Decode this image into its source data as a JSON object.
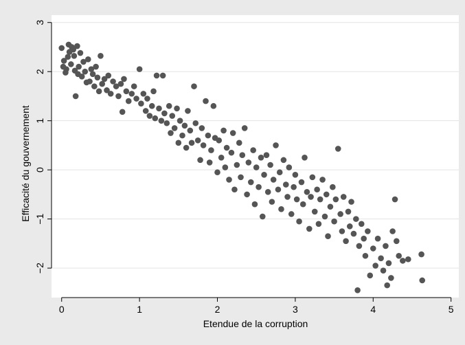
{
  "chart_data": {
    "type": "scatter",
    "title": "",
    "xlabel": "Etendue de la corruption",
    "ylabel": "Efficacité du gouvernement",
    "xlim": [
      -0.13,
      5.1
    ],
    "ylim": [
      -2.6,
      3.15
    ],
    "xticks": [
      0,
      1,
      2,
      3,
      4,
      5
    ],
    "yticks": [
      -2,
      -1,
      0,
      1,
      2,
      3
    ],
    "xtick_labels": [
      "0",
      "1",
      "2",
      "3",
      "4",
      "5"
    ],
    "ytick_labels": [
      "−2",
      "−1",
      "0",
      "1",
      "2",
      "3"
    ],
    "grid": "horizontal",
    "legend": "none",
    "marker_color": "#555555",
    "background_outer": "#eaeaea",
    "background_plot": "#ffffff",
    "grid_color": "#e3e3e3",
    "series": [
      {
        "points": [
          [
            0.0,
            2.48
          ],
          [
            0.02,
            2.1
          ],
          [
            0.03,
            2.22
          ],
          [
            0.05,
            1.98
          ],
          [
            0.06,
            2.05
          ],
          [
            0.08,
            2.3
          ],
          [
            0.09,
            2.55
          ],
          [
            0.1,
            2.4
          ],
          [
            0.12,
            2.15
          ],
          [
            0.13,
            2.5
          ],
          [
            0.15,
            2.45
          ],
          [
            0.16,
            2.32
          ],
          [
            0.17,
            2.02
          ],
          [
            0.18,
            1.5
          ],
          [
            0.2,
            2.52
          ],
          [
            0.21,
            1.95
          ],
          [
            0.22,
            2.1
          ],
          [
            0.24,
            2.38
          ],
          [
            0.26,
            1.9
          ],
          [
            0.28,
            2.2
          ],
          [
            0.3,
            2.0
          ],
          [
            0.32,
            1.78
          ],
          [
            0.34,
            2.25
          ],
          [
            0.36,
            1.8
          ],
          [
            0.38,
            2.05
          ],
          [
            0.4,
            1.95
          ],
          [
            0.42,
            1.7
          ],
          [
            0.44,
            2.1
          ],
          [
            0.46,
            1.88
          ],
          [
            0.48,
            1.6
          ],
          [
            0.5,
            2.32
          ],
          [
            0.52,
            1.75
          ],
          [
            0.55,
            1.85
          ],
          [
            0.58,
            1.62
          ],
          [
            0.6,
            1.92
          ],
          [
            0.63,
            1.55
          ],
          [
            0.66,
            1.8
          ],
          [
            0.7,
            1.7
          ],
          [
            0.73,
            1.5
          ],
          [
            0.76,
            1.75
          ],
          [
            0.78,
            1.18
          ],
          [
            0.8,
            1.85
          ],
          [
            0.83,
            1.6
          ],
          [
            0.86,
            1.4
          ],
          [
            0.9,
            1.55
          ],
          [
            0.93,
            1.7
          ],
          [
            0.96,
            1.45
          ],
          [
            1.0,
            2.05
          ],
          [
            1.02,
            1.35
          ],
          [
            1.05,
            1.55
          ],
          [
            1.08,
            1.2
          ],
          [
            1.1,
            1.45
          ],
          [
            1.13,
            1.1
          ],
          [
            1.16,
            1.3
          ],
          [
            1.18,
            1.6
          ],
          [
            1.2,
            1.05
          ],
          [
            1.22,
            1.92
          ],
          [
            1.25,
            1.25
          ],
          [
            1.28,
            1.0
          ],
          [
            1.3,
            1.92
          ],
          [
            1.32,
            1.15
          ],
          [
            1.35,
            0.95
          ],
          [
            1.38,
            1.3
          ],
          [
            1.4,
            0.75
          ],
          [
            1.42,
            1.1
          ],
          [
            1.45,
            0.85
          ],
          [
            1.48,
            1.25
          ],
          [
            1.5,
            0.55
          ],
          [
            1.52,
            1.0
          ],
          [
            1.55,
            0.7
          ],
          [
            1.58,
            0.9
          ],
          [
            1.6,
            0.45
          ],
          [
            1.62,
            1.2
          ],
          [
            1.65,
            0.8
          ],
          [
            1.67,
            0.55
          ],
          [
            1.7,
            1.7
          ],
          [
            1.72,
            0.95
          ],
          [
            1.75,
            0.6
          ],
          [
            1.78,
            0.2
          ],
          [
            1.8,
            0.85
          ],
          [
            1.82,
            0.5
          ],
          [
            1.85,
            1.4
          ],
          [
            1.88,
            0.7
          ],
          [
            1.9,
            0.15
          ],
          [
            1.92,
            0.4
          ],
          [
            1.95,
            1.3
          ],
          [
            1.97,
            0.65
          ],
          [
            2.0,
            -0.05
          ],
          [
            2.02,
            0.6
          ],
          [
            2.05,
            0.25
          ],
          [
            2.08,
            0.8
          ],
          [
            2.1,
            0.05
          ],
          [
            2.12,
            0.45
          ],
          [
            2.15,
            -0.2
          ],
          [
            2.18,
            0.35
          ],
          [
            2.2,
            0.75
          ],
          [
            2.22,
            -0.4
          ],
          [
            2.25,
            0.1
          ],
          [
            2.28,
            0.55
          ],
          [
            2.3,
            -0.15
          ],
          [
            2.32,
            0.3
          ],
          [
            2.35,
            0.85
          ],
          [
            2.38,
            -0.5
          ],
          [
            2.4,
            0.15
          ],
          [
            2.43,
            -0.25
          ],
          [
            2.46,
            0.4
          ],
          [
            2.48,
            -0.7
          ],
          [
            2.5,
            0.05
          ],
          [
            2.53,
            -0.35
          ],
          [
            2.56,
            0.25
          ],
          [
            2.58,
            -0.95
          ],
          [
            2.6,
            -0.1
          ],
          [
            2.63,
            0.3
          ],
          [
            2.65,
            -0.45
          ],
          [
            2.68,
            0.1
          ],
          [
            2.7,
            -0.65
          ],
          [
            2.72,
            -0.2
          ],
          [
            2.75,
            0.5
          ],
          [
            2.78,
            -0.4
          ],
          [
            2.8,
            -0.05
          ],
          [
            2.82,
            -0.8
          ],
          [
            2.85,
            0.2
          ],
          [
            2.88,
            -0.3
          ],
          [
            2.9,
            -0.55
          ],
          [
            2.92,
            0.05
          ],
          [
            2.95,
            -0.9
          ],
          [
            2.98,
            -0.35
          ],
          [
            3.0,
            -0.1
          ],
          [
            3.02,
            -0.6
          ],
          [
            3.05,
            -1.05
          ],
          [
            3.08,
            -0.25
          ],
          [
            3.1,
            -0.7
          ],
          [
            3.12,
            0.25
          ],
          [
            3.15,
            -0.45
          ],
          [
            3.18,
            -1.2
          ],
          [
            3.2,
            -0.55
          ],
          [
            3.22,
            -0.15
          ],
          [
            3.25,
            -0.85
          ],
          [
            3.28,
            -0.4
          ],
          [
            3.3,
            -1.1
          ],
          [
            3.32,
            -0.6
          ],
          [
            3.35,
            -0.2
          ],
          [
            3.38,
            -0.95
          ],
          [
            3.4,
            -0.5
          ],
          [
            3.42,
            -1.35
          ],
          [
            3.45,
            -0.75
          ],
          [
            3.48,
            -0.35
          ],
          [
            3.5,
            -1.05
          ],
          [
            3.52,
            -0.6
          ],
          [
            3.55,
            0.43
          ],
          [
            3.58,
            -0.9
          ],
          [
            3.6,
            -1.25
          ],
          [
            3.62,
            -0.55
          ],
          [
            3.65,
            -1.45
          ],
          [
            3.68,
            -0.85
          ],
          [
            3.7,
            -1.15
          ],
          [
            3.72,
            -0.65
          ],
          [
            3.75,
            -1.3
          ],
          [
            3.78,
            -1.0
          ],
          [
            3.8,
            -2.45
          ],
          [
            3.82,
            -1.55
          ],
          [
            3.85,
            -1.1
          ],
          [
            3.88,
            -1.4
          ],
          [
            3.9,
            -1.75
          ],
          [
            3.93,
            -1.25
          ],
          [
            3.96,
            -2.15
          ],
          [
            4.0,
            -1.6
          ],
          [
            4.03,
            -1.95
          ],
          [
            4.06,
            -1.4
          ],
          [
            4.1,
            -1.8
          ],
          [
            4.13,
            -2.05
          ],
          [
            4.16,
            -1.55
          ],
          [
            4.18,
            -2.35
          ],
          [
            4.2,
            -1.9
          ],
          [
            4.23,
            -2.2
          ],
          [
            4.25,
            -1.25
          ],
          [
            4.28,
            -0.6
          ],
          [
            4.3,
            -1.45
          ],
          [
            4.33,
            -1.75
          ],
          [
            4.38,
            -1.85
          ],
          [
            4.45,
            -1.82
          ],
          [
            4.62,
            -1.72
          ],
          [
            4.63,
            -2.25
          ]
        ]
      }
    ]
  }
}
